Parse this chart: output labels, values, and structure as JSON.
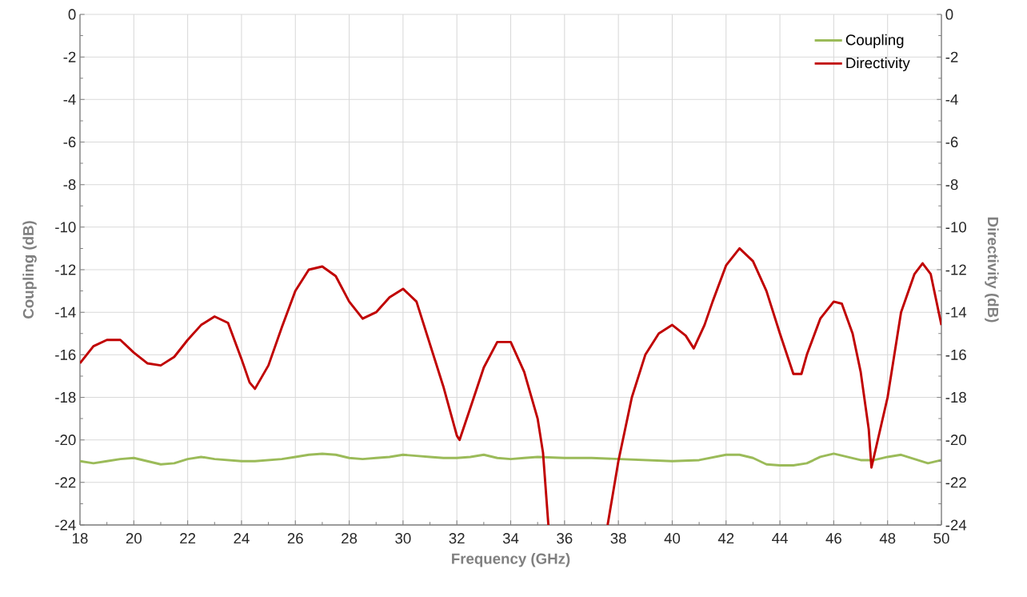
{
  "chart_data": {
    "type": "line",
    "xlabel": "Frequency (GHz)",
    "ylabel": "Coupling (dB)",
    "y2label": "Directivity (dB)",
    "xlim": [
      18,
      50
    ],
    "xticks": [
      18,
      20,
      22,
      24,
      26,
      28,
      30,
      32,
      34,
      36,
      38,
      40,
      42,
      44,
      46,
      48,
      50
    ],
    "ylim": [
      -24,
      0
    ],
    "yticks": [
      0,
      -2,
      -4,
      -6,
      -8,
      -10,
      -12,
      -14,
      -16,
      -18,
      -20,
      -22,
      -24
    ],
    "y2lim": [
      -24,
      0
    ],
    "y2ticks": [
      0,
      -2,
      -4,
      -6,
      -8,
      -10,
      -12,
      -14,
      -16,
      -18,
      -20,
      -22,
      -24
    ],
    "grid": true,
    "legend": "top right",
    "marker": "none",
    "line_style": "solid",
    "series": [
      {
        "name": "Coupling",
        "color": "#9bbb59",
        "x": [
          18,
          18.5,
          19,
          19.5,
          20,
          20.5,
          21,
          21.5,
          22,
          22.5,
          23,
          23.5,
          24,
          24.5,
          25,
          25.5,
          26,
          26.5,
          27,
          27.5,
          28,
          28.5,
          29,
          29.5,
          30,
          30.5,
          31,
          31.5,
          32,
          32.5,
          33,
          33.5,
          34,
          34.5,
          35,
          36,
          37,
          38,
          39,
          40,
          41,
          42,
          42.5,
          43,
          43.5,
          44,
          44.5,
          45,
          45.5,
          46,
          46.5,
          47,
          47.5,
          48,
          48.5,
          49,
          49.5,
          50
        ],
        "values": [
          -21.0,
          -21.1,
          -21.0,
          -20.9,
          -20.85,
          -21.0,
          -21.15,
          -21.1,
          -20.9,
          -20.8,
          -20.9,
          -20.95,
          -21.0,
          -21.0,
          -20.95,
          -20.9,
          -20.8,
          -20.7,
          -20.65,
          -20.7,
          -20.85,
          -20.9,
          -20.85,
          -20.8,
          -20.7,
          -20.75,
          -20.8,
          -20.85,
          -20.85,
          -20.8,
          -20.7,
          -20.85,
          -20.9,
          -20.85,
          -20.8,
          -20.85,
          -20.85,
          -20.9,
          -20.95,
          -21.0,
          -20.95,
          -20.7,
          -20.7,
          -20.85,
          -21.15,
          -21.2,
          -21.2,
          -21.1,
          -20.8,
          -20.65,
          -20.8,
          -20.95,
          -20.95,
          -20.8,
          -20.7,
          -20.9,
          -21.1,
          -20.95
        ]
      },
      {
        "name": "Directivity",
        "color": "#c00000",
        "axis": "y2",
        "x": [
          18,
          18.5,
          19,
          19.5,
          20,
          20.5,
          21,
          21.5,
          22,
          22.5,
          23,
          23.5,
          24,
          24.3,
          24.5,
          25,
          25.5,
          26,
          26.5,
          27,
          27.5,
          28,
          28.5,
          29,
          29.5,
          30,
          30.5,
          31,
          31.5,
          32,
          32.1,
          32.5,
          33,
          33.5,
          34,
          34.5,
          35,
          35.2,
          35.4,
          36.5,
          37.6,
          38,
          38.5,
          39,
          39.5,
          40,
          40.5,
          40.8,
          41.2,
          41.5,
          42,
          42.5,
          43,
          43.5,
          44,
          44.5,
          44.8,
          45,
          45.5,
          46,
          46.3,
          46.7,
          47,
          47.3,
          47.4,
          48,
          48.5,
          49,
          49.3,
          49.6,
          50
        ],
        "values": [
          -16.4,
          -15.6,
          -15.3,
          -15.3,
          -15.9,
          -16.4,
          -16.5,
          -16.1,
          -15.3,
          -14.6,
          -14.2,
          -14.5,
          -16.2,
          -17.3,
          -17.6,
          -16.5,
          -14.7,
          -13.0,
          -12.0,
          -11.85,
          -12.3,
          -13.5,
          -14.3,
          -14.0,
          -13.3,
          -12.9,
          -13.5,
          -15.5,
          -17.5,
          -19.8,
          -20.0,
          -18.5,
          -16.6,
          -15.4,
          -15.4,
          -16.8,
          -19.0,
          -20.6,
          -24,
          null,
          -24,
          -21.0,
          -18.0,
          -16.0,
          -15.0,
          -14.6,
          -15.1,
          -15.7,
          -14.6,
          -13.5,
          -11.8,
          -11.0,
          -11.6,
          -13.0,
          -15.0,
          -16.9,
          -16.9,
          -16.0,
          -14.3,
          -13.5,
          -13.6,
          -15.0,
          -16.8,
          -19.5,
          -21.3,
          -18.0,
          -14.0,
          -12.2,
          -11.7,
          -12.2,
          -14.6
        ]
      }
    ]
  }
}
